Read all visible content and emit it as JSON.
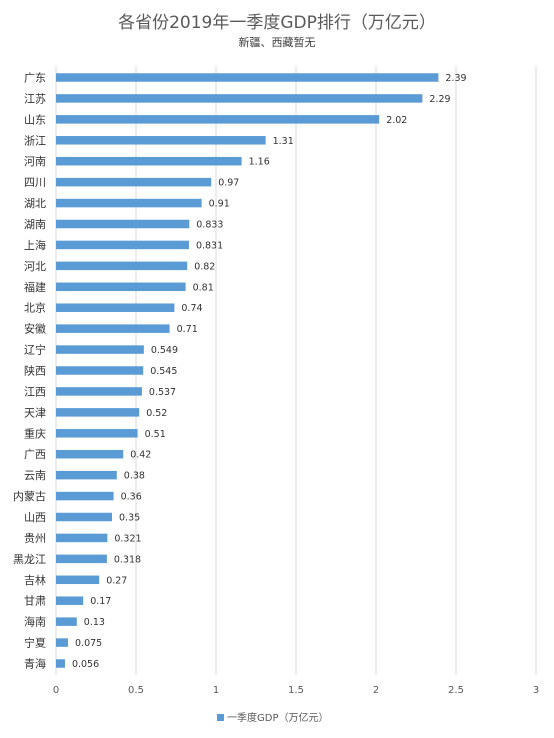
{
  "chart_data": {
    "type": "bar",
    "orientation": "horizontal",
    "title": "各省份2019年一季度GDP排行（万亿元）",
    "subtitle": "新疆、西藏暂无",
    "categories": [
      "广东",
      "江苏",
      "山东",
      "浙江",
      "河南",
      "四川",
      "湖北",
      "湖南",
      "上海",
      "河北",
      "福建",
      "北京",
      "安徽",
      "辽宁",
      "陕西",
      "江西",
      "天津",
      "重庆",
      "广西",
      "云南",
      "内蒙古",
      "山西",
      "贵州",
      "黑龙江",
      "吉林",
      "甘肃",
      "海南",
      "宁夏",
      "青海"
    ],
    "series": [
      {
        "name": "一季度GDP（万亿元）",
        "color": "#5b9bd5",
        "values": [
          2.39,
          2.29,
          2.02,
          1.31,
          1.16,
          0.97,
          0.91,
          0.833,
          0.831,
          0.82,
          0.81,
          0.74,
          0.71,
          0.549,
          0.545,
          0.537,
          0.52,
          0.51,
          0.42,
          0.38,
          0.36,
          0.35,
          0.321,
          0.318,
          0.27,
          0.17,
          0.13,
          0.075,
          0.056
        ],
        "labels": [
          "2.39",
          "2.29",
          "2.02",
          "1.31",
          "1.16",
          "0.97",
          "0.91",
          "0.833",
          "0.831",
          "0.82",
          "0.81",
          "0.74",
          "0.71",
          "0.549",
          "0.545",
          "0.537",
          "0.52",
          "0.51",
          "0.42",
          "0.38",
          "0.36",
          "0.35",
          "0.321",
          "0.318",
          "0.27",
          "0.17",
          "0.13",
          "0.075",
          "0.056"
        ]
      }
    ],
    "xlim": [
      0,
      3
    ],
    "xticks": [
      "0",
      "0.5",
      "1",
      "1.5",
      "2",
      "2.5",
      "3"
    ],
    "xtick_values": [
      0,
      0.5,
      1,
      1.5,
      2,
      2.5,
      3
    ],
    "grid": true,
    "legend": "bottom"
  }
}
